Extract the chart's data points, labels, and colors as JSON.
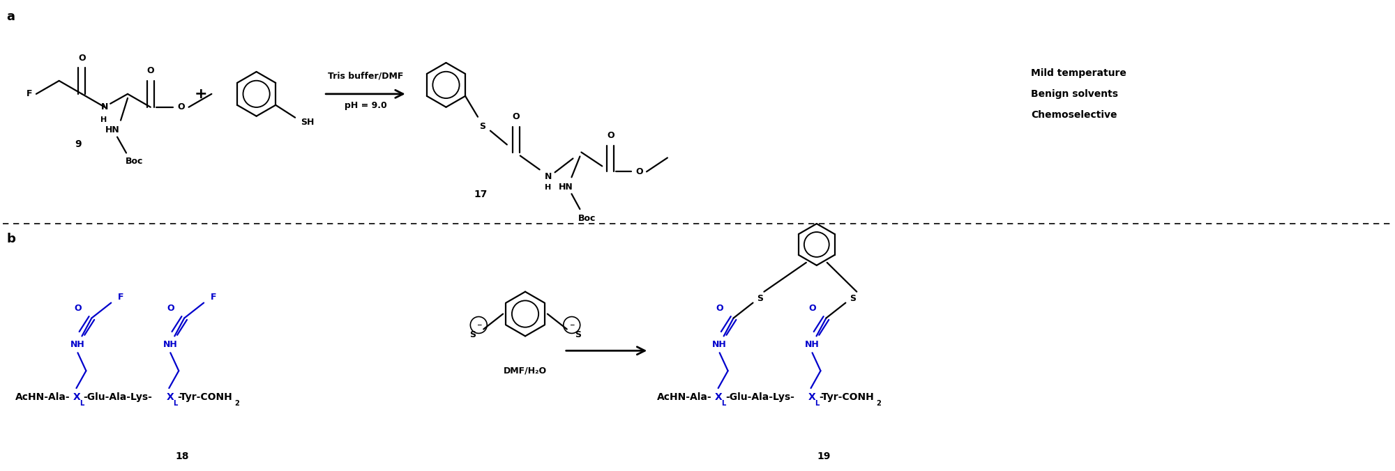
{
  "panel_a_label": "a",
  "panel_b_label": "b",
  "compound_9": "9",
  "compound_17": "17",
  "compound_18": "18",
  "compound_19": "19",
  "reaction_conditions_a_line1": "Tris buffer/DMF",
  "reaction_conditions_a_line2": "pH = 9.0",
  "black": "#000000",
  "blue": "#0000CC",
  "mild_temp": "Mild temperature",
  "benign_solv": "Benign solvents",
  "chemosel": "Chemoselective",
  "bg_color": "#ffffff",
  "fig_width": 20.0,
  "fig_height": 6.76,
  "dpi": 100
}
